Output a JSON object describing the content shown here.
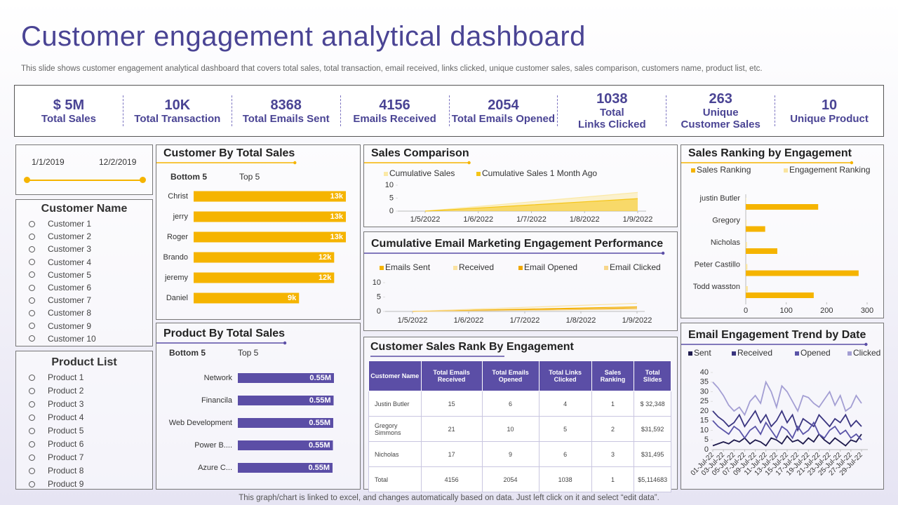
{
  "title": "Customer engagement analytical dashboard",
  "subtitle": "This slide shows customer engagement analytical dashboard that covers total sales, total transaction, email received, links clicked, unique customer sales, sales comparison, customers name, product list, etc.",
  "kpis": [
    {
      "value": "$ 5M",
      "label": "Total Sales"
    },
    {
      "value": "10K",
      "label": "Total Transaction"
    },
    {
      "value": "8368",
      "label": "Total Emails  Sent"
    },
    {
      "value": "4156",
      "label": "Emails Received"
    },
    {
      "value": "2054",
      "label": "Total Emails Opened"
    },
    {
      "value": "1038",
      "label": "Total\nLinks Clicked"
    },
    {
      "value": "263",
      "label": "Unique\nCustomer Sales"
    },
    {
      "value": "10",
      "label": "Unique Product"
    }
  ],
  "date_range": [
    "1/1/2019",
    "12/2/2019"
  ],
  "customer_list": {
    "title": "Customer Name",
    "items": [
      "Customer 1",
      "Customer 2",
      "Customer 3",
      "Customer 4",
      "Customer 5",
      "Customer 6",
      "Customer 7",
      "Customer 8",
      "Customer 9",
      "Customer 10"
    ]
  },
  "product_list": {
    "title": "Product List",
    "items": [
      "Product 1",
      "Product 2",
      "Product 3",
      "Product 4",
      "Product 5",
      "Product 6",
      "Product 7",
      "Product 8",
      "Product 9"
    ]
  },
  "table": {
    "title": "Customer Sales Rank By Engagement",
    "columns": [
      "Customer Name",
      "Total Emails Received",
      "Total Emails Opened",
      "Total Links Clicked",
      "Sales Ranking",
      "Total Slides"
    ],
    "rows": [
      [
        "Justin Butler",
        "15",
        "6",
        "4",
        "1",
        "$ 32,348"
      ],
      [
        "Gregory Simmons",
        "21",
        "10",
        "5",
        "2",
        "$31,592"
      ],
      [
        "Nicholas",
        "17",
        "9",
        "6",
        "3",
        "$31,495"
      ],
      [
        "Total",
        "4156",
        "2054",
        "1038",
        "1",
        "$5,114683"
      ]
    ]
  },
  "footer": "This graph/chart is linked to excel,  and changes automatically based on data. Just left click on it and select “edit data”.",
  "chart_data": [
    {
      "type": "bar",
      "horizontal": true,
      "title": "Customer By Total Sales",
      "tabs": [
        "Bottom 5",
        "Top 5"
      ],
      "categories": [
        "Christ",
        "jerry",
        "Roger",
        "Brando",
        "jeremy",
        "Daniel"
      ],
      "values": [
        13000,
        13000,
        13000,
        12000,
        12000,
        9000
      ],
      "value_labels": [
        "13k",
        "13k",
        "13k",
        "12k",
        "12k",
        "9k"
      ],
      "color": "#f5b400"
    },
    {
      "type": "bar",
      "horizontal": true,
      "title": "Product By Total Sales",
      "tabs": [
        "Bottom 5",
        "Top 5"
      ],
      "categories": [
        "Network",
        "Financila",
        "Web Development",
        "Power B....",
        "Azure C..."
      ],
      "values": [
        554000,
        552000,
        550000,
        548000,
        546000
      ],
      "value_labels": [
        "0.55M",
        "0.55M",
        "0.55M",
        "0.55M",
        "0.55M"
      ],
      "color": "#5b4ea6"
    },
    {
      "type": "area",
      "title": "Sales Comparison",
      "categories": [
        "1/5/2022",
        "1/6/2022",
        "1/7/2022",
        "1/8/2022",
        "1/9/2022"
      ],
      "series": [
        {
          "name": "Cumulative Sales",
          "color": "#fbe9a6",
          "values": [
            0,
            1.8,
            3.6,
            5.4,
            7.2
          ]
        },
        {
          "name": "Cumulative Sales 1 Month Ago",
          "color": "#f5c518",
          "values": [
            0,
            1.2,
            2.4,
            3.6,
            4.8
          ]
        }
      ],
      "ylim": [
        0,
        10
      ],
      "yticks": [
        0,
        5,
        10
      ],
      "grid": false
    },
    {
      "type": "line",
      "title": "Cumulative Email Marketing Engagement Performance",
      "categories": [
        "1/5/2022",
        "1/6/2022",
        "1/7/2022",
        "1/8/2022",
        "1/9/2022"
      ],
      "series": [
        {
          "name": "Emails Sent",
          "color": "#f5b400",
          "values": [
            0,
            0.4,
            0.8,
            1.2,
            1.6
          ]
        },
        {
          "name": "Received",
          "color": "#fbe3a0",
          "values": [
            0,
            0.7,
            1.4,
            2.1,
            2.8
          ]
        },
        {
          "name": "Email Opened",
          "color": "#f0a800",
          "values": [
            0,
            0.3,
            0.6,
            0.9,
            1.2
          ]
        },
        {
          "name": "Email Clicked",
          "color": "#f7d68a",
          "values": [
            0,
            0.2,
            0.4,
            0.6,
            0.8
          ]
        }
      ],
      "ylim": [
        0,
        10
      ],
      "yticks": [
        0,
        5,
        10
      ],
      "grid": false
    },
    {
      "type": "bar",
      "horizontal": true,
      "title": "Sales Ranking by Engagement",
      "categories": [
        "justin Butler",
        "Gregory",
        "Nicholas",
        "Peter Castillo",
        "Todd wasston"
      ],
      "series": [
        {
          "name": "Sales Ranking",
          "color": "#f5b400",
          "values": [
            179,
            48,
            78,
            279,
            168
          ]
        },
        {
          "name": "Engagement Ranking",
          "color": "#f9e4a0",
          "values": [
            1,
            2,
            3,
            4,
            5
          ]
        }
      ],
      "xlim": [
        0,
        300
      ],
      "xticks": [
        0,
        100,
        200,
        300
      ],
      "grid": false
    },
    {
      "type": "line",
      "title": "Email Engagement Trend by Date",
      "categories": [
        "01-Jul-22",
        null,
        "03-Jul-22",
        null,
        "05-Jul-22",
        null,
        "07-Jul-22",
        null,
        "09-Jul-22",
        null,
        "11-Jul-22",
        null,
        "13-Jul-22",
        null,
        "15-Jul-22",
        null,
        "17-Jul-22",
        null,
        "19-Jul-22",
        null,
        "21-Jul-22",
        null,
        "23-Jul-22",
        null,
        "25-Jul-22",
        null,
        "27-Jul-22",
        null,
        "29-Jul-22"
      ],
      "series": [
        {
          "name": "Sent",
          "color": "#1f1b4d",
          "values": [
            2,
            3,
            4,
            3,
            5,
            4,
            6,
            3,
            5,
            4,
            2,
            6,
            5,
            3,
            7,
            4,
            5,
            3,
            6,
            4,
            8,
            5,
            3,
            6,
            4,
            2,
            5,
            4,
            8
          ]
        },
        {
          "name": "Received",
          "color": "#3a3580",
          "values": [
            20,
            17,
            15,
            12,
            14,
            18,
            12,
            16,
            20,
            14,
            18,
            12,
            15,
            20,
            14,
            18,
            10,
            16,
            14,
            12,
            18,
            15,
            12,
            16,
            14,
            18,
            12,
            15,
            12
          ]
        },
        {
          "name": "Opened",
          "color": "#5a54a8",
          "values": [
            15,
            12,
            10,
            8,
            12,
            10,
            6,
            10,
            12,
            8,
            14,
            10,
            6,
            12,
            10,
            6,
            12,
            8,
            10,
            14,
            8,
            6,
            10,
            12,
            8,
            10,
            6,
            8,
            5
          ]
        },
        {
          "name": "Clicked",
          "color": "#a39ed3",
          "values": [
            35,
            32,
            28,
            23,
            20,
            22,
            18,
            25,
            28,
            24,
            35,
            30,
            22,
            33,
            30,
            25,
            20,
            28,
            27,
            24,
            22,
            26,
            30,
            23,
            28,
            20,
            22,
            28,
            24
          ]
        }
      ],
      "ylim": [
        0,
        40
      ],
      "yticks": [
        0,
        5,
        10,
        15,
        20,
        25,
        30,
        35,
        40
      ],
      "grid": false
    }
  ]
}
